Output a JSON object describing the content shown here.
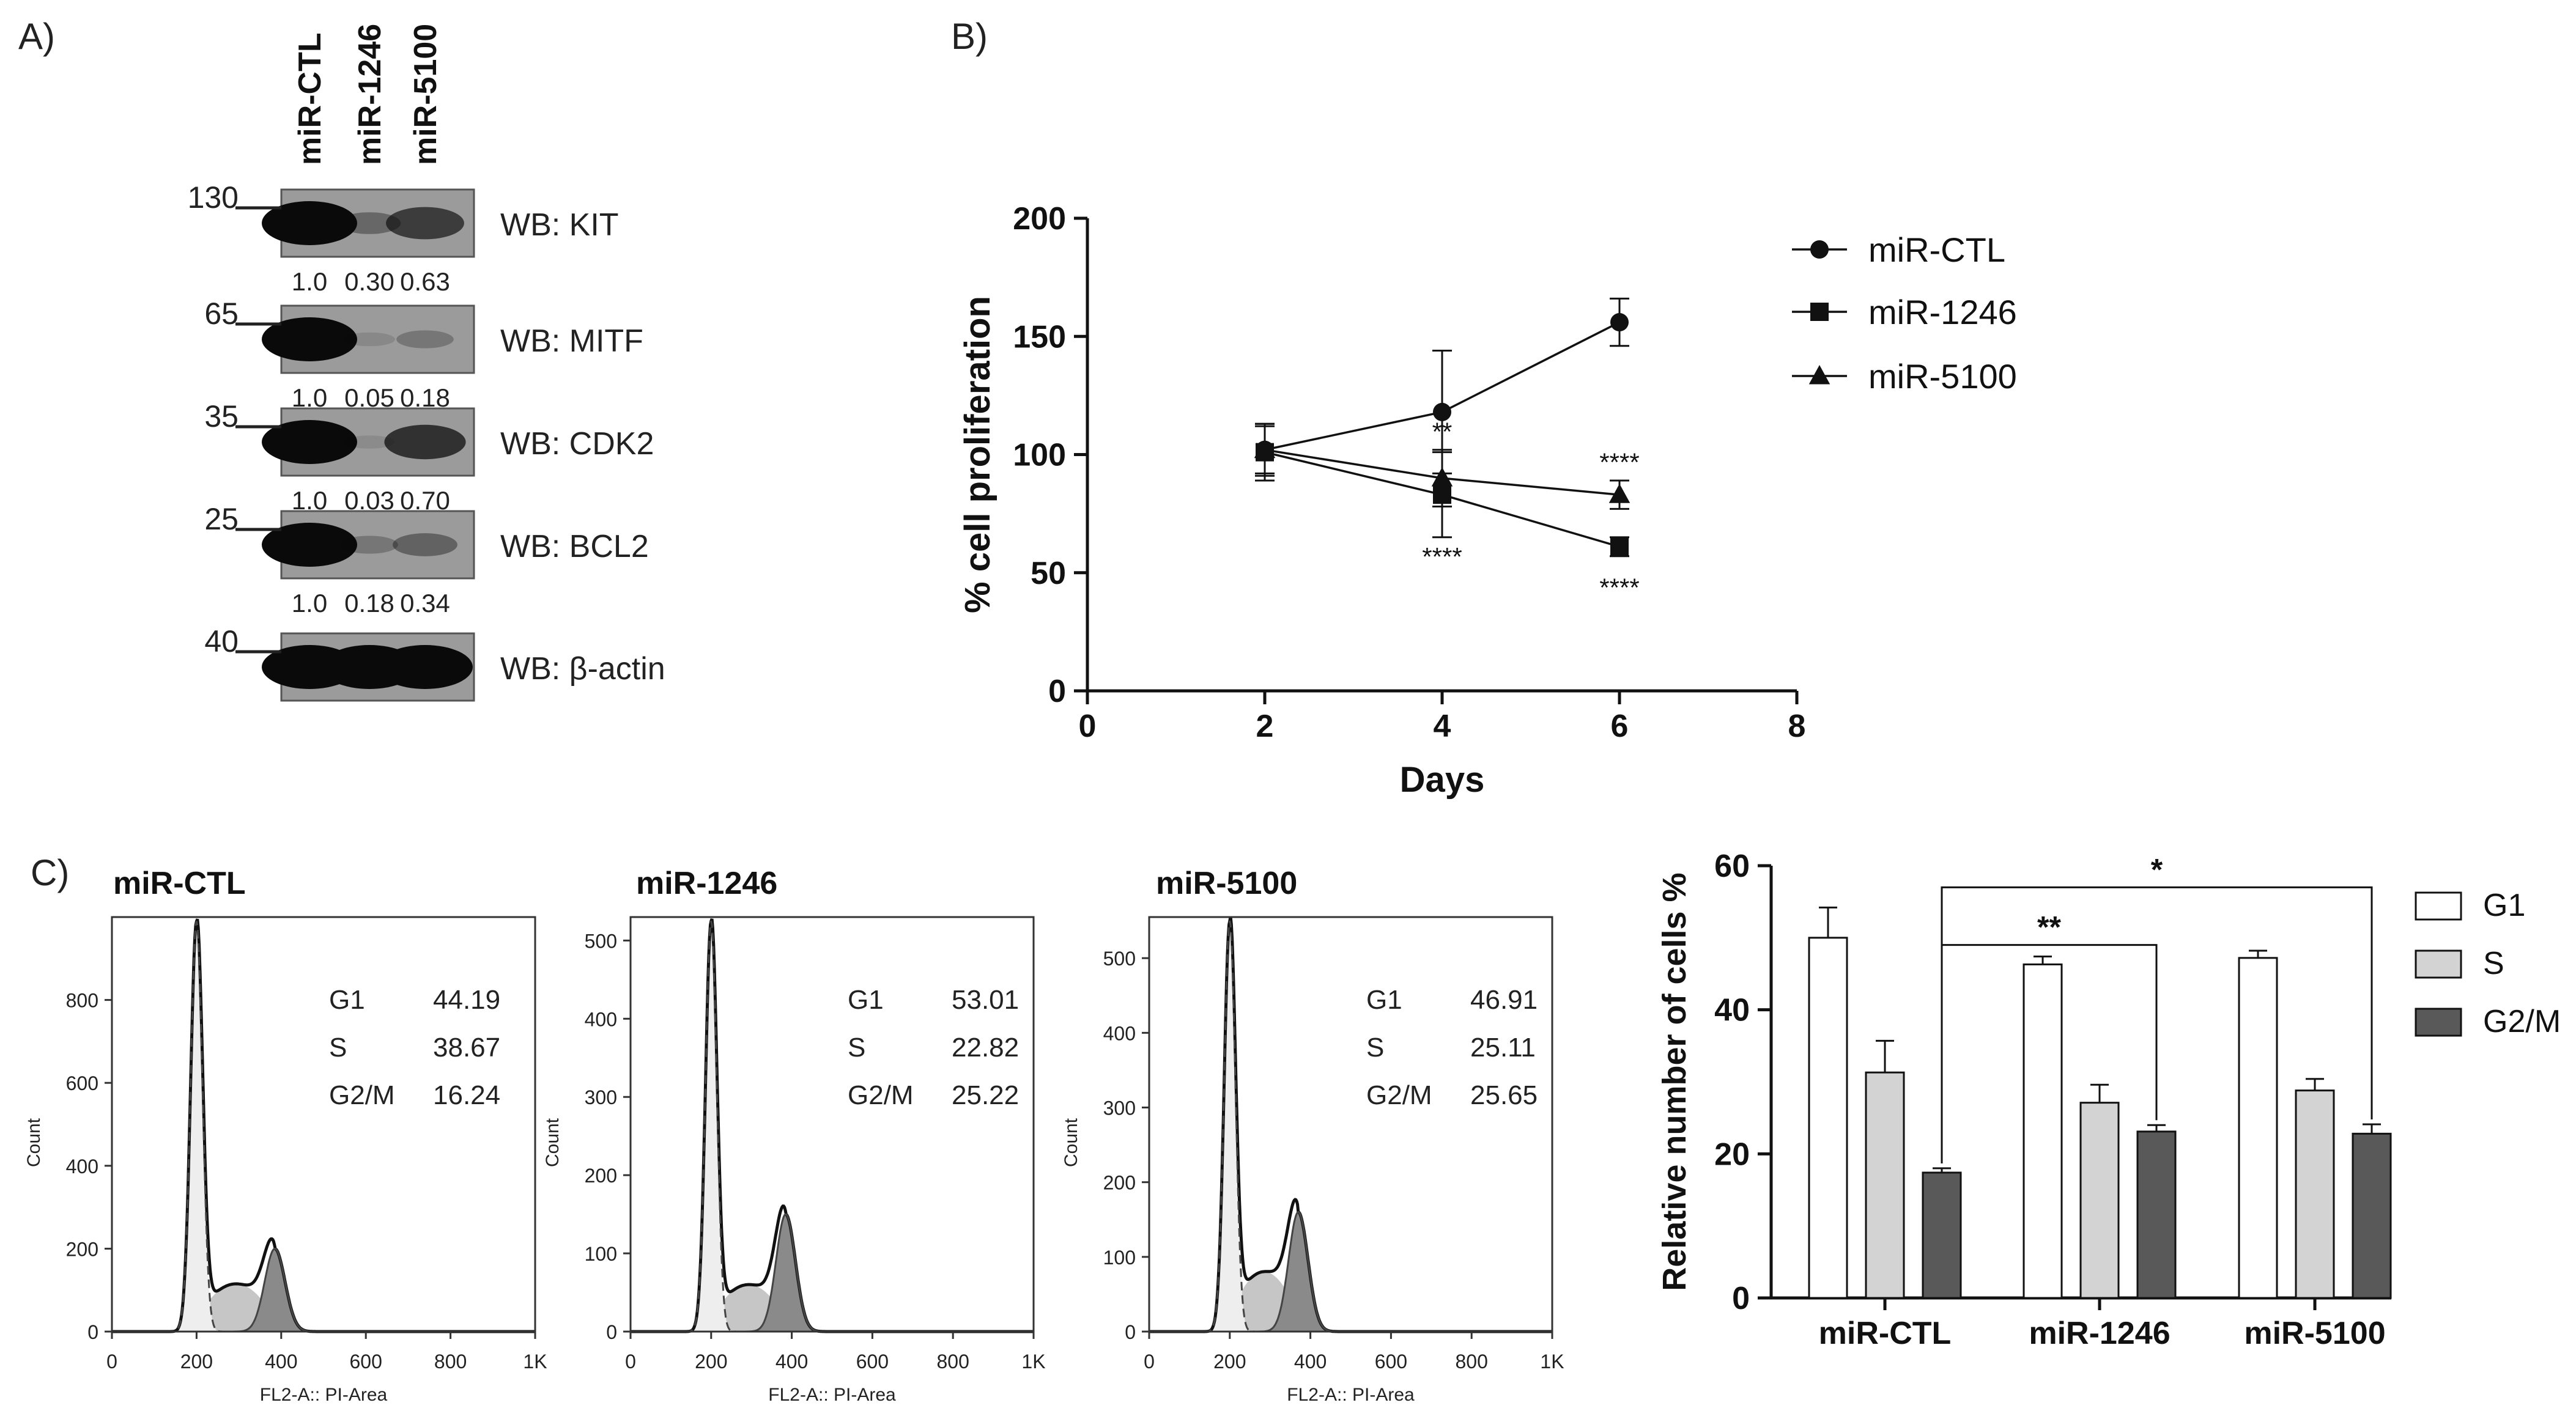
{
  "panel_labels": {
    "a": "A)",
    "b": "B)",
    "c": "C)"
  },
  "western_blot": {
    "lane_labels": [
      "miR-CTL",
      "miR-1246",
      "miR-5100"
    ],
    "blots": [
      {
        "marker": "130",
        "label": "WB: KIT",
        "quant": [
          "1.0",
          "0.30",
          "0.63"
        ],
        "intensity": [
          1.0,
          0.3,
          0.63
        ]
      },
      {
        "marker": "65",
        "label": "WB: MITF",
        "quant": [
          "1.0",
          "0.05",
          "0.18"
        ],
        "intensity": [
          1.0,
          0.05,
          0.18
        ]
      },
      {
        "marker": "35",
        "label": "WB: CDK2",
        "quant": [
          "1.0",
          "0.03",
          "0.70"
        ],
        "intensity": [
          1.0,
          0.03,
          0.7
        ]
      },
      {
        "marker": "25",
        "label": "WB: BCL2",
        "quant": [
          "1.0",
          "0.18",
          "0.34"
        ],
        "intensity": [
          1.0,
          0.18,
          0.34
        ]
      },
      {
        "marker": "40",
        "label": "WB: β-actin",
        "quant": [],
        "intensity": [
          1.0,
          1.0,
          1.0
        ]
      }
    ]
  },
  "chart_data": [
    {
      "type": "line",
      "panel": "B",
      "title": "",
      "xlabel": "Days",
      "ylabel": "% cell proliferation",
      "xlim": [
        0,
        8
      ],
      "ylim": [
        0,
        200
      ],
      "xticks": [
        0,
        2,
        4,
        6,
        8
      ],
      "yticks": [
        0,
        50,
        100,
        150,
        200
      ],
      "x": [
        2,
        4,
        6
      ],
      "series": [
        {
          "name": "miR-CTL",
          "marker": "circle",
          "values": [
            102,
            118,
            156
          ],
          "errors": [
            11,
            26,
            10
          ]
        },
        {
          "name": "miR-1246",
          "marker": "square",
          "values": [
            101,
            83,
            61
          ],
          "errors": [
            12,
            18,
            4
          ]
        },
        {
          "name": "miR-5100",
          "marker": "triangle",
          "values": [
            102,
            90,
            83
          ],
          "errors": [
            10,
            12,
            6
          ]
        }
      ],
      "annotations": [
        {
          "x": 4,
          "y": 106,
          "text": "**"
        },
        {
          "x": 4,
          "y": 53,
          "text": "****"
        },
        {
          "x": 6,
          "y": 93,
          "text": "****"
        },
        {
          "x": 6,
          "y": 40,
          "text": "****"
        }
      ],
      "legend": "right"
    },
    {
      "type": "area",
      "panel": "C",
      "title": "miR-CTL",
      "xlabel": "FL2-A:: PI-Area",
      "ylabel": "Count",
      "xlim": [
        0,
        1000
      ],
      "ylim": [
        0,
        1000
      ],
      "xticks": [
        "0",
        "200",
        "400",
        "600",
        "800",
        "1K"
      ],
      "yticks": [
        0,
        200,
        400,
        600,
        800
      ],
      "peaks": {
        "g1_pos": 200,
        "g1_height": 990,
        "g2_pos": 385,
        "g2_height": 200,
        "s_height": 115
      },
      "stats": [
        {
          "phase": "G1",
          "value": "44.19"
        },
        {
          "phase": "S",
          "value": "38.67"
        },
        {
          "phase": "G2/M",
          "value": "16.24"
        }
      ]
    },
    {
      "type": "area",
      "panel": "C",
      "title": "miR-1246",
      "xlabel": "FL2-A:: PI-Area",
      "ylabel": "Count",
      "xlim": [
        0,
        1000
      ],
      "ylim": [
        0,
        530
      ],
      "xticks": [
        "0",
        "200",
        "400",
        "600",
        "800",
        "1K"
      ],
      "yticks": [
        0,
        100,
        200,
        300,
        400,
        500
      ],
      "peaks": {
        "g1_pos": 200,
        "g1_height": 525,
        "g2_pos": 385,
        "g2_height": 150,
        "s_height": 60
      },
      "stats": [
        {
          "phase": "G1",
          "value": "53.01"
        },
        {
          "phase": "S",
          "value": "22.82"
        },
        {
          "phase": "G2/M",
          "value": "25.22"
        }
      ]
    },
    {
      "type": "area",
      "panel": "C",
      "title": "miR-5100",
      "xlabel": "FL2-A:: PI-Area",
      "ylabel": "Count",
      "xlim": [
        0,
        1000
      ],
      "ylim": [
        0,
        555
      ],
      "xticks": [
        "0",
        "200",
        "400",
        "600",
        "800",
        "1K"
      ],
      "yticks": [
        0,
        100,
        200,
        300,
        400,
        500
      ],
      "peaks": {
        "g1_pos": 200,
        "g1_height": 550,
        "g2_pos": 370,
        "g2_height": 160,
        "s_height": 80
      },
      "stats": [
        {
          "phase": "G1",
          "value": "46.91"
        },
        {
          "phase": "S",
          "value": "25.11"
        },
        {
          "phase": "G2/M",
          "value": "25.65"
        }
      ]
    },
    {
      "type": "bar",
      "panel": "C",
      "title": "",
      "xlabel": "",
      "ylabel": "Relative number of cells %",
      "ylim": [
        0,
        60
      ],
      "yticks": [
        0,
        20,
        40,
        60
      ],
      "categories": [
        "miR-CTL",
        "miR-1246",
        "miR-5100"
      ],
      "series": [
        {
          "name": "G1",
          "color": "#ffffff",
          "values": [
            50,
            46.3,
            47.2
          ],
          "errors": [
            4.2,
            1.1,
            1.0
          ]
        },
        {
          "name": "S",
          "color": "#d3d3d3",
          "values": [
            31.3,
            27.1,
            28.8
          ],
          "errors": [
            4.4,
            2.5,
            1.6
          ]
        },
        {
          "name": "G2/M",
          "color": "#595959",
          "values": [
            17.4,
            23.1,
            22.8
          ],
          "errors": [
            0.6,
            0.9,
            1.3
          ]
        }
      ],
      "significance": [
        {
          "from": "miR-CTL",
          "to": "miR-1246",
          "series": "G2/M",
          "label": "**"
        },
        {
          "from": "miR-CTL",
          "to": "miR-5100",
          "series": "G2/M",
          "label": "*"
        }
      ],
      "legend": "right"
    }
  ]
}
